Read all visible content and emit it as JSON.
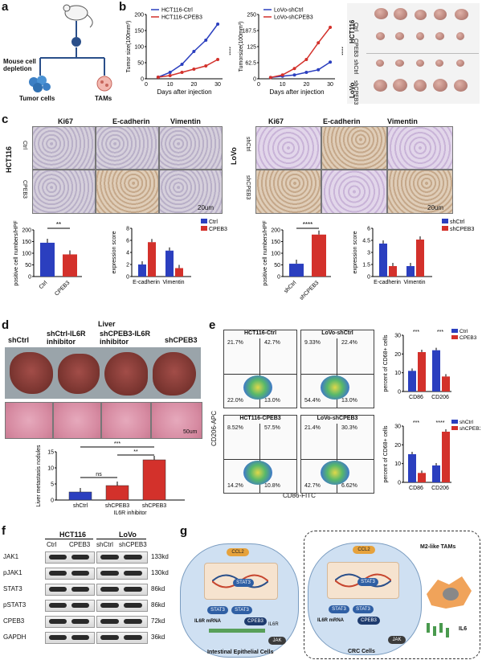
{
  "panels": {
    "a": "a",
    "b": "b",
    "c": "c",
    "d": "d",
    "e": "e",
    "f": "f",
    "g": "g"
  },
  "panel_a": {
    "depletion": "Mouse cell\ndepletion",
    "tumor_cells": "Tumor cells",
    "tams": "TAMs"
  },
  "panel_b": {
    "xlabel": "Days after injection",
    "ylabel_left": "Tumor size(100mm³)",
    "ylabel_right": "Tumorsize(100mm³)",
    "sig": "****",
    "photo_rows": [
      "Ctrl",
      "CPEB3",
      "shCtrl",
      "shCPEB3"
    ],
    "photo_groups": [
      "HCT116",
      "LoVo"
    ]
  },
  "chart_data": [
    {
      "type": "line",
      "title": "",
      "xlabel": "Days after injection",
      "ylabel": "Tumor size(100mm³)",
      "x": [
        5,
        10,
        15,
        20,
        25,
        30
      ],
      "ylim": [
        0,
        200
      ],
      "series": [
        {
          "name": "HCT116-Ctrl",
          "values": [
            5,
            20,
            45,
            85,
            120,
            170
          ],
          "color": "#2b3fbf"
        },
        {
          "name": "HCT116-CPEB3",
          "values": [
            5,
            10,
            20,
            30,
            40,
            60
          ],
          "color": "#d3312b"
        }
      ]
    },
    {
      "type": "line",
      "title": "",
      "xlabel": "Days after injection",
      "ylabel": "Tumorsize(100mm³)",
      "x": [
        5,
        10,
        15,
        20,
        25,
        30
      ],
      "ylim": [
        0,
        250
      ],
      "series": [
        {
          "name": "LoVo-shCtrl",
          "values": [
            5,
            10,
            15,
            25,
            35,
            65
          ],
          "color": "#2b3fbf"
        },
        {
          "name": "LoVo-shCPEB3",
          "values": [
            5,
            15,
            40,
            75,
            140,
            200
          ],
          "color": "#d3312b"
        }
      ]
    },
    {
      "type": "bar",
      "ylabel": "positive cell numbers/HPF",
      "categories": [
        "Ctrl",
        "CPEB3"
      ],
      "values": [
        145,
        95
      ],
      "ylim": [
        0,
        200
      ],
      "sig": "**"
    },
    {
      "type": "bar",
      "ylabel": "expression score",
      "categories": [
        "E-cadherin",
        "Vimentin"
      ],
      "ylim": [
        0,
        8
      ],
      "series": [
        {
          "name": "Ctrl",
          "values": [
            2.0,
            4.3
          ]
        },
        {
          "name": "CPEB3",
          "values": [
            5.7,
            1.4
          ]
        }
      ]
    },
    {
      "type": "bar",
      "ylabel": "positive cell numbers/HPF",
      "categories": [
        "shCtrl",
        "shCPEB3"
      ],
      "values": [
        55,
        180
      ],
      "ylim": [
        0,
        200
      ],
      "sig": "****"
    },
    {
      "type": "bar",
      "ylabel": "expression score",
      "categories": [
        "E-cadherin",
        "Vimentin"
      ],
      "ylim": [
        0,
        6
      ],
      "series": [
        {
          "name": "shCtrl",
          "values": [
            4.1,
            1.3
          ]
        },
        {
          "name": "shCPEB3",
          "values": [
            1.3,
            4.6
          ]
        }
      ]
    },
    {
      "type": "bar",
      "ylabel": "Liver metastasis nodules",
      "categories": [
        "shCtrl",
        "shCPEB3",
        "shCPEB3"
      ],
      "values": [
        2.5,
        4.5,
        12.5
      ],
      "ylim": [
        0,
        15
      ],
      "xlabel": "IL6R inhibitor"
    },
    {
      "type": "bar",
      "ylabel": "percent of CD68+ cells",
      "categories": [
        "CD86",
        "CD206"
      ],
      "ylim": [
        0,
        30
      ],
      "series": [
        {
          "name": "Ctrl",
          "values": [
            11,
            22
          ]
        },
        {
          "name": "CPEB3",
          "values": [
            21,
            8
          ]
        }
      ]
    },
    {
      "type": "bar",
      "ylabel": "percent of CD68+ cells",
      "categories": [
        "CD86",
        "CD206"
      ],
      "ylim": [
        0,
        30
      ],
      "series": [
        {
          "name": "shCtrl",
          "values": [
            15,
            9
          ]
        },
        {
          "name": "shCPEB3",
          "values": [
            5,
            27
          ]
        }
      ]
    }
  ],
  "panel_c": {
    "stains": [
      "Ki67",
      "E-cadherin",
      "Vimentin"
    ],
    "hct": {
      "group": "HCT116",
      "rows": [
        "Ctrl",
        "CPEB3"
      ]
    },
    "lovo": {
      "group": "LoVo",
      "rows": [
        "shCtrl",
        "shCPEB3"
      ]
    },
    "scale": "20um"
  },
  "panel_d": {
    "title": "Liver",
    "groups": [
      "shCtrl",
      "shCtrl-IL6R inhibitor",
      "shCPEB3-IL6R inhibitor",
      "shCPEB3"
    ],
    "scale": "50um",
    "ns": "ns",
    "sig1": "**",
    "sig2": "***"
  },
  "panel_e": {
    "plots": [
      {
        "title": "HCT116-Ctrl",
        "q": [
          "21.7%",
          "42.7%",
          "22.0%",
          "13.0%"
        ]
      },
      {
        "title": "LoVo-shCtrl",
        "q": [
          "9.33%",
          "22.4%",
          "54.4%",
          "13.0%"
        ]
      },
      {
        "title": "HCT116-CPEB3",
        "q": [
          "8.52%",
          "57.5%",
          "14.2%",
          "10.8%"
        ]
      },
      {
        "title": "LoVo-shCPEB3",
        "q": [
          "21.4%",
          "30.3%",
          "42.7%",
          "6.62%"
        ]
      }
    ],
    "ylabel": "CD206-APC",
    "xlabel": "CD86-FITC",
    "sig_a": "***",
    "sig_b": "***",
    "sig_c": "***",
    "sig_d": "****"
  },
  "panel_f": {
    "groups": [
      "HCT116",
      "LoVo"
    ],
    "lanes": [
      "Ctrl",
      "CPEB3",
      "shCtrl",
      "shCPEB3"
    ],
    "proteins": [
      {
        "name": "JAK1",
        "kd": "133kd"
      },
      {
        "name": "pJAK1",
        "kd": "130kd"
      },
      {
        "name": "STAT3",
        "kd": "86kd"
      },
      {
        "name": "pSTAT3",
        "kd": "86kd"
      },
      {
        "name": "CPEB3",
        "kd": "72kd"
      },
      {
        "name": "GAPDH",
        "kd": "36kd"
      }
    ]
  },
  "panel_g": {
    "left": {
      "ccl2": "CCL2",
      "stat3": "STAT3",
      "il6r": "IL6R mRNA",
      "cpeb3": "CPEB3",
      "jak": "JAK",
      "il6r_label": "IL6R",
      "caption": "Intestinal Epithelial Cells"
    },
    "right": {
      "ccl2": "CCL2",
      "stat3": "STAT3",
      "il6r": "IL6R mRNA",
      "cpeb3": "CPEB3",
      "jak": "JAK",
      "caption": "CRC Cells",
      "tams": "M2-like TAMs",
      "il6": "IL6"
    }
  }
}
